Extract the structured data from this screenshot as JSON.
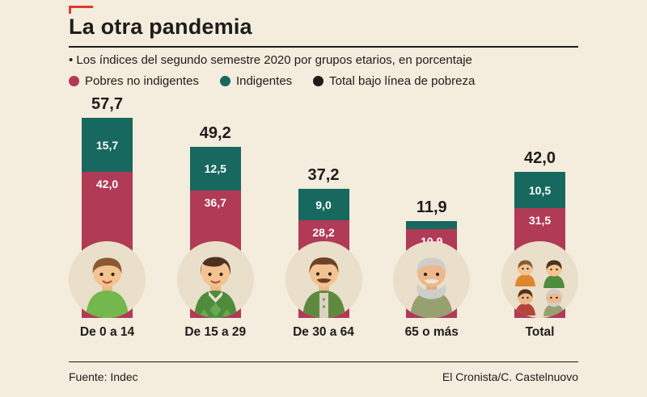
{
  "header": {
    "title": "La otra pandemia",
    "subtitle": "• Los índices del segundo semestre 2020 por grupos etarios, en porcentaje"
  },
  "legend": {
    "items": [
      {
        "label": "Pobres no indigentes",
        "color": "#b13a56"
      },
      {
        "label": "Indigentes",
        "color": "#17685e"
      },
      {
        "label": "Total bajo línea de pobreza",
        "color": "#1d1d1b"
      }
    ]
  },
  "chart_data": {
    "type": "bar",
    "stacked": true,
    "unit": "percent",
    "title": "La otra pandemia",
    "categories": [
      "De 0 a 14",
      "De 15 a 29",
      "De 30 a 64",
      "65 o más",
      "Total"
    ],
    "totals": [
      57.7,
      49.2,
      37.2,
      11.9,
      42.0
    ],
    "series": [
      {
        "name": "Pobres no indigentes",
        "color": "#b13a56",
        "values": [
          42.0,
          36.7,
          28.2,
          10.9,
          31.5
        ]
      },
      {
        "name": "Indigentes",
        "color": "#17685e",
        "values": [
          15.7,
          12.5,
          9.0,
          1.0,
          10.5
        ]
      }
    ],
    "value_labels": {
      "totals": [
        "57,7",
        "49,2",
        "37,2",
        "11,9",
        "42,0"
      ],
      "indigentes": [
        "15,7",
        "12,5",
        "9,0",
        "",
        "10,5"
      ],
      "pobres": [
        "42,0",
        "36,7",
        "28,2",
        "10,9",
        "31,5"
      ]
    },
    "icons": [
      "child-icon",
      "young-adult-icon",
      "adult-icon",
      "elderly-icon",
      "all-ages-group-icon"
    ],
    "ylim": [
      0,
      60
    ],
    "legend_position": "top",
    "grid": false
  },
  "footer": {
    "source": "Fuente: Indec",
    "credit": "El Cronista/C. Castelnuovo"
  },
  "accent_color": "#e0392e",
  "background_color": "#f4ecdc"
}
